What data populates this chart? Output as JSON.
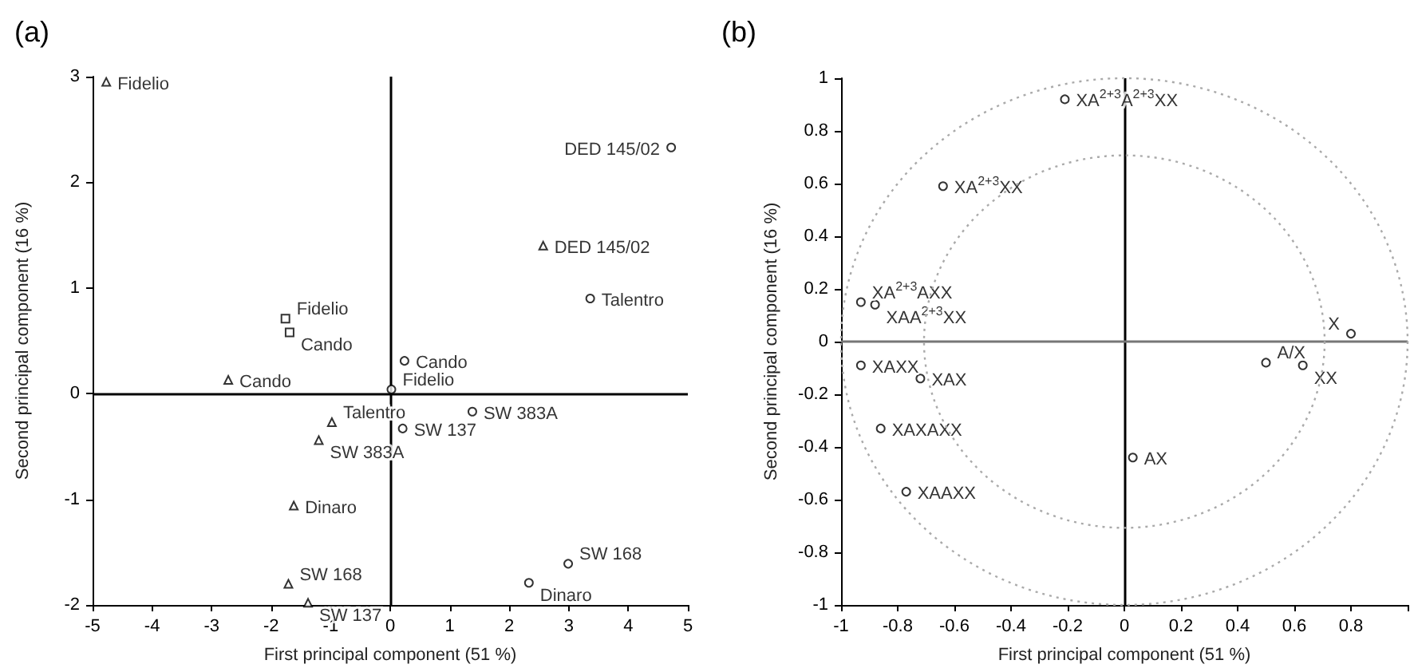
{
  "chart_data": [
    {
      "type": "scatter",
      "title": "(a)",
      "xlabel": "First principal component (51 %)",
      "ylabel": "Second principal component (16 %)",
      "xlim": [
        -5,
        5
      ],
      "ylim": [
        -2,
        3
      ],
      "xticks": [
        -5,
        -4,
        -3,
        -2,
        -1,
        0,
        1,
        2,
        3,
        4,
        5
      ],
      "yticks": [
        -2,
        -1,
        0,
        1,
        2,
        3
      ],
      "ref_lines": [
        {
          "axis": "x",
          "value": 0,
          "color": "#000000"
        },
        {
          "axis": "y",
          "value": 0,
          "color": "#000000"
        }
      ],
      "series": [
        {
          "color": "#000000",
          "marker": "triangle",
          "x": [
            -4.77,
            2.57,
            -2.72,
            -0.98,
            -1.2,
            -1.62,
            -1.71,
            -1.38
          ],
          "values": [
            2.95,
            1.4,
            0.13,
            -0.27,
            -0.44,
            -1.06,
            -1.8,
            -1.98
          ],
          "value_labels": [
            "Fidelio",
            "DED 145/02",
            "Cando",
            "Talentro",
            "SW 383A",
            "Dinaro",
            "SW 168",
            "SW 137"
          ]
        },
        {
          "color": "#000000",
          "marker": "square",
          "x": [
            -1.76,
            -1.69
          ],
          "values": [
            0.71,
            0.58
          ],
          "value_labels": [
            "Fidelio",
            "Cando"
          ]
        },
        {
          "color": "#000000",
          "marker": "circle",
          "x": [
            4.72,
            3.36,
            0.24,
            0.02,
            1.38,
            0.21,
            2.99,
            2.33
          ],
          "values": [
            2.33,
            0.9,
            0.31,
            0.04,
            -0.17,
            -0.33,
            -1.61,
            -1.79
          ],
          "value_labels": [
            "DED 145/02",
            "Talentro",
            "Cando",
            "Fidelio",
            "SW 383A",
            "SW 137",
            "SW 168",
            "Dinaro"
          ]
        }
      ]
    },
    {
      "type": "scatter",
      "title": "(b)",
      "xlabel": "First principal component (51 %)",
      "ylabel": "Second principal component (16 %)",
      "xlim": [
        -1,
        1
      ],
      "ylim": [
        -1,
        1
      ],
      "xticks": [
        -1,
        -0.8,
        -0.6,
        -0.4,
        -0.2,
        0,
        0.2,
        0.4,
        0.6,
        0.8,
        {
          "value": 1,
          "label": null
        }
      ],
      "yticks": [
        -1,
        -0.8,
        -0.6,
        -0.4,
        -0.2,
        0,
        0.2,
        0.4,
        0.6,
        0.8,
        1
      ],
      "ref_lines": [
        {
          "axis": "x",
          "value": 0,
          "color": "#000000"
        },
        {
          "axis": "y",
          "value": 0,
          "color": "#777777"
        }
      ],
      "series": [
        {
          "color": "#000000",
          "marker": "circle",
          "x": [
            -0.21,
            -0.64,
            -0.93,
            -0.88,
            0.8,
            -0.93,
            -0.72,
            -0.86,
            -0.77,
            0.03,
            0.5,
            0.63
          ],
          "values": [
            0.92,
            0.59,
            0.15,
            0.14,
            0.03,
            -0.09,
            -0.14,
            -0.33,
            -0.57,
            -0.44,
            -0.08,
            -0.09
          ],
          "value_labels": [
            "XA$^{2+3}$A$^{2+3}$XX",
            "XA$^{2+3}$XX",
            "XA$^{2+3}$AXX",
            "XAA$^{2+3}$XX",
            "X",
            "XAXX",
            "XAX",
            "XAXAXX",
            "XAAXX",
            "AX",
            "A/X",
            "XX"
          ]
        }
      ]
    }
  ]
}
